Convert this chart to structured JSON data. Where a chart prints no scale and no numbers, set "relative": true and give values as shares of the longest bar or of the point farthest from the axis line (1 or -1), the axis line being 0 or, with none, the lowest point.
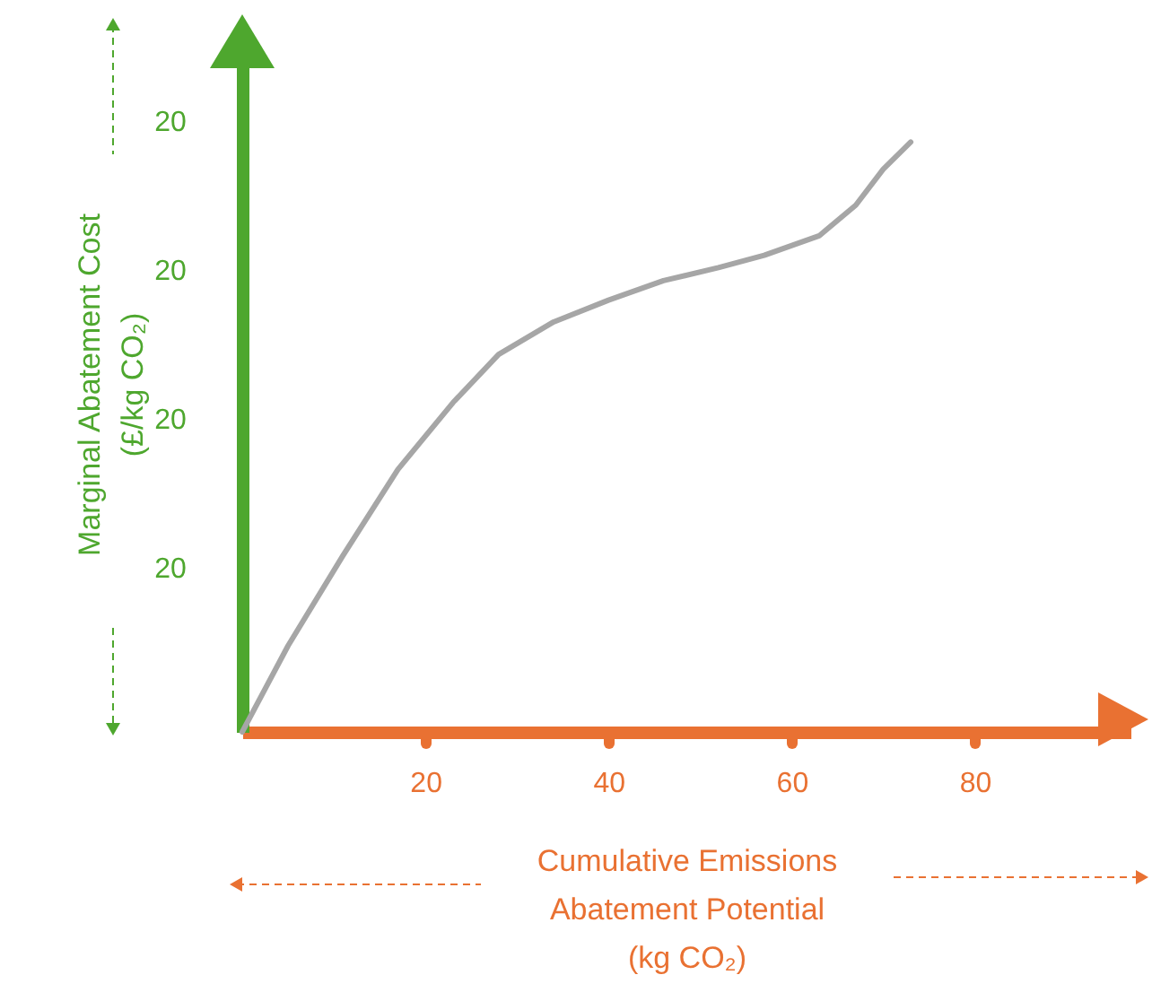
{
  "chart_data": {
    "type": "line",
    "relative": true,
    "xlabel": "Cumulative Emissions Abatement Potential (kg CO₂)",
    "ylabel": "Marginal Abatement Cost (£/kg CO₂)",
    "xlim": [
      0,
      97
    ],
    "xticks": [
      20,
      40,
      60,
      80
    ],
    "series": [
      {
        "color": "#a6a6a6",
        "x": [
          0,
          5,
          11,
          17,
          23,
          28,
          34,
          40,
          46,
          52,
          57,
          63,
          67,
          70,
          73
        ],
        "values": [
          0,
          0.146,
          0.299,
          0.445,
          0.558,
          0.64,
          0.695,
          0.732,
          0.765,
          0.787,
          0.808,
          0.841,
          0.893,
          0.954,
          1
        ]
      }
    ],
    "annotations": [
      "20",
      "20",
      "20",
      "20"
    ]
  }
}
